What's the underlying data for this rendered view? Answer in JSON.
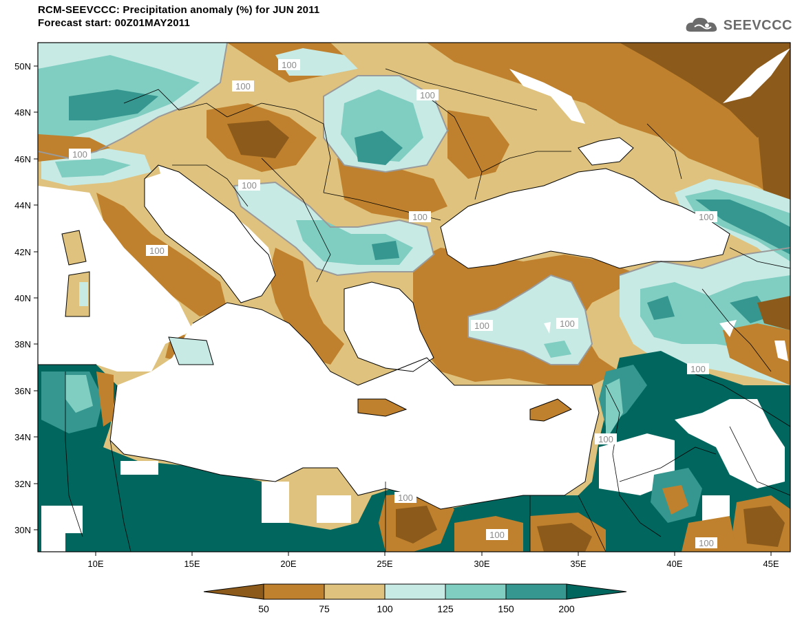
{
  "title_line1": "RCM-SEEVCCC: Precipitation anomaly (%) for JUN 2011",
  "title_line2": "Forecast start: 00Z01MAY2011",
  "logo_text": "SEEVCCC",
  "lat_labels": [
    "50N",
    "48N",
    "46N",
    "44N",
    "42N",
    "40N",
    "38N",
    "36N",
    "34N",
    "32N",
    "30N"
  ],
  "lon_labels": [
    "10E",
    "15E",
    "20E",
    "25E",
    "30E",
    "35E",
    "40E",
    "45E"
  ],
  "contour_labels": [
    "100",
    "100",
    "100",
    "100",
    "100",
    "100",
    "100",
    "100",
    "100",
    "100",
    "100",
    "100",
    "100",
    "100",
    "100"
  ],
  "colorbar": {
    "labels": [
      "50",
      "75",
      "100",
      "125",
      "150",
      "200"
    ],
    "colors": [
      "#8c5a1a",
      "#bf812d",
      "#dfc27d",
      "#c7eae5",
      "#80cdc1",
      "#35978f",
      "#01665e"
    ]
  }
}
